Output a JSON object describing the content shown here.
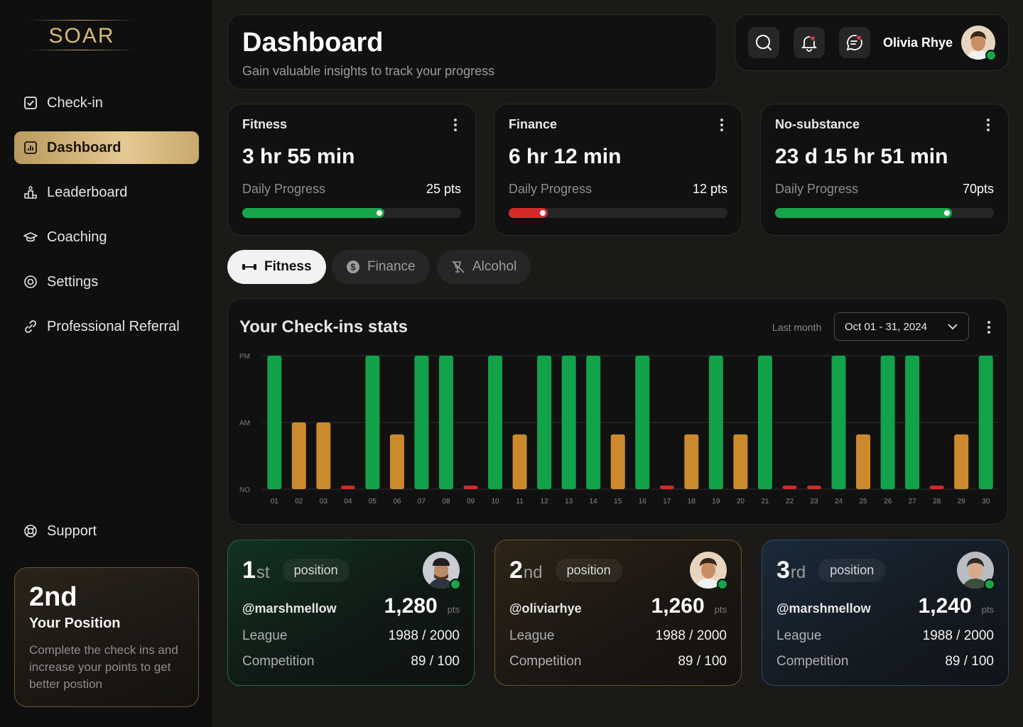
{
  "brand": {
    "logo": "SOAR"
  },
  "nav": {
    "items": [
      {
        "label": "Check-in",
        "icon": "checkbox-icon"
      },
      {
        "label": "Dashboard",
        "icon": "bar-chart-icon"
      },
      {
        "label": "Leaderboard",
        "icon": "podium-icon"
      },
      {
        "label": "Coaching",
        "icon": "graduation-cap-icon"
      },
      {
        "label": "Settings",
        "icon": "settings-icon"
      },
      {
        "label": "Professional Referral",
        "icon": "link-icon"
      }
    ],
    "support": "Support"
  },
  "position_card": {
    "rank": "2nd",
    "title": "Your Position",
    "description": "Complete the check ins and increase your points to get better postion"
  },
  "header": {
    "title": "Dashboard",
    "subtitle": "Gain valuable insights to track your progress"
  },
  "user": {
    "name": "Olivia Rhye"
  },
  "stats": [
    {
      "title": "Fitness",
      "value": "3 hr 55 min",
      "label": "Daily Progress",
      "points": "25 pts",
      "progress": 0.65,
      "color": "#17a64a"
    },
    {
      "title": "Finance",
      "value": "6 hr 12 min",
      "label": "Daily Progress",
      "points": "12 pts",
      "progress": 0.18,
      "color": "#d42a2a"
    },
    {
      "title": "No-substance",
      "value": "23 d 15 hr 51 min",
      "label": "Daily Progress",
      "points": "70pts",
      "progress": 0.81,
      "color": "#17a64a"
    }
  ],
  "tabs": [
    {
      "label": "Fitness",
      "icon": "dumbbell-icon"
    },
    {
      "label": "Finance",
      "icon": "dollar-icon"
    },
    {
      "label": "Alcohol",
      "icon": "no-drink-icon"
    }
  ],
  "chart_panel": {
    "title": "Your Check-ins stats",
    "period_label": "Last month",
    "date_range": "Oct 01 - 31, 2024"
  },
  "chart_data": {
    "type": "bar",
    "title": "Your Check-ins stats",
    "categories": [
      "01",
      "02",
      "03",
      "04",
      "05",
      "06",
      "07",
      "08",
      "09",
      "10",
      "11",
      "12",
      "13",
      "14",
      "15",
      "16",
      "17",
      "18",
      "19",
      "20",
      "21",
      "22",
      "23",
      "24",
      "25",
      "26",
      "27",
      "28",
      "29",
      "30"
    ],
    "y_levels": [
      "NO",
      "AM",
      "PM"
    ],
    "values": [
      2,
      1,
      1,
      0,
      2,
      0.82,
      2,
      2,
      0,
      2,
      0.82,
      2,
      2,
      2,
      0.82,
      2,
      0,
      0.82,
      2,
      0.82,
      2,
      0,
      0,
      2,
      0.82,
      2,
      2,
      0,
      0.82,
      2
    ],
    "ylim": [
      0,
      2
    ],
    "grid": true,
    "colors": {
      "pm": "#12a24a",
      "am": "#cc8a2e",
      "none": "#d42a2a"
    }
  },
  "leaderboard": [
    {
      "num": "1",
      "suffix": "st",
      "tag": "position",
      "handle": "@marshmellow",
      "points": "1,280",
      "pts_label": "pts",
      "league_label": "League",
      "league": "1988 / 2000",
      "competition_label": "Competition",
      "competition": "89 / 100"
    },
    {
      "num": "2",
      "suffix": "nd",
      "tag": "position",
      "handle": "@oliviarhye",
      "points": "1,260",
      "pts_label": "pts",
      "league_label": "League",
      "league": "1988 / 2000",
      "competition_label": "Competition",
      "competition": "89 / 100"
    },
    {
      "num": "3",
      "suffix": "rd",
      "tag": "position",
      "handle": "@marshmellow",
      "points": "1,240",
      "pts_label": "pts",
      "league_label": "League",
      "league": "1988 / 2000",
      "competition_label": "Competition",
      "competition": "89 / 100"
    }
  ]
}
